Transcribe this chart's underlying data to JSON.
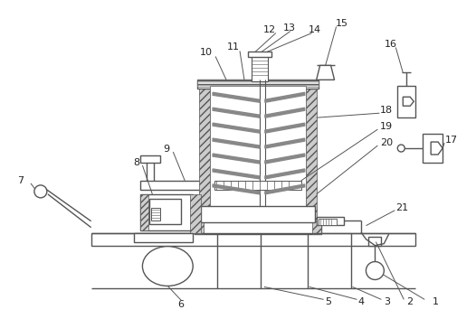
{
  "line_color": "#555555",
  "figsize": [
    5.26,
    3.53
  ],
  "dpi": 100,
  "label_fs": 8.0,
  "label_color": "#222222"
}
